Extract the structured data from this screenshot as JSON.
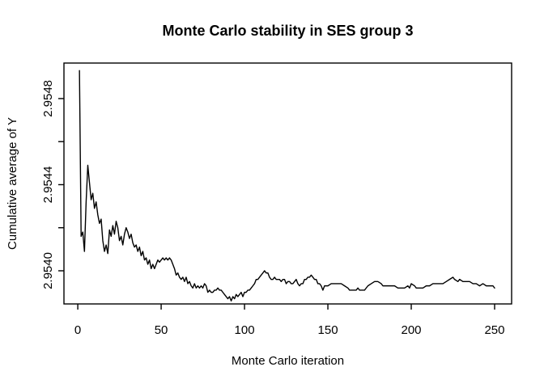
{
  "figure": {
    "background": "#ffffff",
    "foreground": "#000000"
  },
  "chart_data": {
    "type": "line",
    "title": "Monte Carlo stability in SES group 3",
    "xlabel": "Monte Carlo iteration",
    "ylabel": "Cumulative average of Y",
    "xlim": [
      -8.3,
      260.2
    ],
    "ylim": [
      2.953846,
      2.954965
    ],
    "grid": false,
    "legend": null,
    "x_ticks": {
      "values": [
        0,
        50,
        100,
        150,
        200,
        250
      ],
      "labels": [
        "0",
        "50",
        "100",
        "150",
        "200",
        "250"
      ]
    },
    "y_ticks": {
      "values": [
        2.954,
        2.9542,
        2.9544,
        2.9546,
        2.9548
      ],
      "labels": [
        "2.9540",
        "",
        "2.9544",
        "",
        "2.9548"
      ]
    },
    "series": [
      {
        "name": "cumulative_average_of_Y",
        "color": "#000000",
        "points": [
          [
            1,
            2.95493
          ],
          [
            2,
            2.95416
          ],
          [
            3,
            2.95418
          ],
          [
            4,
            2.95409
          ],
          [
            5,
            2.95432
          ],
          [
            6,
            2.95449
          ],
          [
            7,
            2.95441
          ],
          [
            8,
            2.95433
          ],
          [
            9,
            2.95436
          ],
          [
            10,
            2.95429
          ],
          [
            11,
            2.95432
          ],
          [
            12,
            2.95426
          ],
          [
            13,
            2.95422
          ],
          [
            14,
            2.95424
          ],
          [
            15,
            2.95414
          ],
          [
            16,
            2.95409
          ],
          [
            17,
            2.95412
          ],
          [
            18,
            2.95408
          ],
          [
            19,
            2.95419
          ],
          [
            20,
            2.95416
          ],
          [
            21,
            2.95421
          ],
          [
            22,
            2.95417
          ],
          [
            23,
            2.95423
          ],
          [
            24,
            2.9542
          ],
          [
            25,
            2.95414
          ],
          [
            26,
            2.95416
          ],
          [
            27,
            2.95412
          ],
          [
            28,
            2.95417
          ],
          [
            29,
            2.9542
          ],
          [
            30,
            2.95418
          ],
          [
            31,
            2.95415
          ],
          [
            32,
            2.95417
          ],
          [
            33,
            2.95413
          ],
          [
            34,
            2.95411
          ],
          [
            35,
            2.95412
          ],
          [
            36,
            2.95409
          ],
          [
            37,
            2.95411
          ],
          [
            38,
            2.95407
          ],
          [
            39,
            2.95409
          ],
          [
            40,
            2.95405
          ],
          [
            41,
            2.95406
          ],
          [
            42,
            2.95403
          ],
          [
            43,
            2.95405
          ],
          [
            44,
            2.95401
          ],
          [
            45,
            2.95403
          ],
          [
            46,
            2.95401
          ],
          [
            47,
            2.95403
          ],
          [
            48,
            2.95405
          ],
          [
            49,
            2.95404
          ],
          [
            50,
            2.95405
          ],
          [
            51,
            2.95406
          ],
          [
            52,
            2.95405
          ],
          [
            53,
            2.95406
          ],
          [
            54,
            2.95405
          ],
          [
            55,
            2.95406
          ],
          [
            56,
            2.95405
          ],
          [
            57,
            2.95403
          ],
          [
            58,
            2.95401
          ],
          [
            59,
            2.95398
          ],
          [
            60,
            2.95399
          ],
          [
            61,
            2.95397
          ],
          [
            62,
            2.95396
          ],
          [
            63,
            2.95397
          ],
          [
            64,
            2.95395
          ],
          [
            65,
            2.95397
          ],
          [
            66,
            2.95394
          ],
          [
            67,
            2.95395
          ],
          [
            68,
            2.95393
          ],
          [
            69,
            2.95392
          ],
          [
            70,
            2.95394
          ],
          [
            71,
            2.95392
          ],
          [
            72,
            2.95393
          ],
          [
            73,
            2.95392
          ],
          [
            74,
            2.95393
          ],
          [
            75,
            2.95392
          ],
          [
            76,
            2.95394
          ],
          [
            77,
            2.95393
          ],
          [
            78,
            2.9539
          ],
          [
            79,
            2.95391
          ],
          [
            80,
            2.9539
          ],
          [
            81,
            2.9539
          ],
          [
            82,
            2.95391
          ],
          [
            83,
            2.95391
          ],
          [
            84,
            2.95392
          ],
          [
            85,
            2.95391
          ],
          [
            86,
            2.95391
          ],
          [
            87,
            2.9539
          ],
          [
            88,
            2.95389
          ],
          [
            89,
            2.95388
          ],
          [
            90,
            2.95387
          ],
          [
            91,
            2.95388
          ],
          [
            92,
            2.95386
          ],
          [
            93,
            2.95388
          ],
          [
            94,
            2.95387
          ],
          [
            95,
            2.95389
          ],
          [
            96,
            2.95388
          ],
          [
            97,
            2.95389
          ],
          [
            98,
            2.9539
          ],
          [
            99,
            2.95388
          ],
          [
            100,
            2.9539
          ],
          [
            101,
            2.9539
          ],
          [
            102,
            2.95391
          ],
          [
            103,
            2.95391
          ],
          [
            104,
            2.95392
          ],
          [
            105,
            2.95393
          ],
          [
            106,
            2.95394
          ],
          [
            107,
            2.95396
          ],
          [
            108,
            2.95396
          ],
          [
            109,
            2.95397
          ],
          [
            110,
            2.95398
          ],
          [
            111,
            2.95399
          ],
          [
            112,
            2.954
          ],
          [
            113,
            2.95399
          ],
          [
            114,
            2.95399
          ],
          [
            115,
            2.95397
          ],
          [
            116,
            2.95396
          ],
          [
            117,
            2.95396
          ],
          [
            118,
            2.95397
          ],
          [
            119,
            2.95396
          ],
          [
            120,
            2.95396
          ],
          [
            121,
            2.95396
          ],
          [
            122,
            2.95395
          ],
          [
            123,
            2.95396
          ],
          [
            124,
            2.95396
          ],
          [
            125,
            2.95394
          ],
          [
            126,
            2.95395
          ],
          [
            127,
            2.95395
          ],
          [
            128,
            2.95394
          ],
          [
            129,
            2.95394
          ],
          [
            130,
            2.95395
          ],
          [
            131,
            2.95396
          ],
          [
            132,
            2.95394
          ],
          [
            133,
            2.95393
          ],
          [
            134,
            2.95394
          ],
          [
            135,
            2.95394
          ],
          [
            136,
            2.95396
          ],
          [
            137,
            2.95396
          ],
          [
            138,
            2.95397
          ],
          [
            139,
            2.95397
          ],
          [
            140,
            2.95398
          ],
          [
            141,
            2.95397
          ],
          [
            142,
            2.95396
          ],
          [
            143,
            2.95396
          ],
          [
            144,
            2.95394
          ],
          [
            145,
            2.95394
          ],
          [
            146,
            2.95393
          ],
          [
            147,
            2.95391
          ],
          [
            148,
            2.95393
          ],
          [
            149,
            2.95393
          ],
          [
            150,
            2.95393
          ],
          [
            152,
            2.95394
          ],
          [
            154,
            2.95394
          ],
          [
            156,
            2.95394
          ],
          [
            158,
            2.95394
          ],
          [
            160,
            2.95393
          ],
          [
            162,
            2.95392
          ],
          [
            163,
            2.95391
          ],
          [
            165,
            2.95391
          ],
          [
            167,
            2.95391
          ],
          [
            168,
            2.95392
          ],
          [
            169,
            2.95391
          ],
          [
            171,
            2.95391
          ],
          [
            172,
            2.95391
          ],
          [
            174,
            2.95393
          ],
          [
            176,
            2.95394
          ],
          [
            178,
            2.95395
          ],
          [
            180,
            2.95395
          ],
          [
            182,
            2.95394
          ],
          [
            183,
            2.95393
          ],
          [
            185,
            2.95393
          ],
          [
            187,
            2.95393
          ],
          [
            188,
            2.95393
          ],
          [
            190,
            2.95393
          ],
          [
            192,
            2.95392
          ],
          [
            194,
            2.95392
          ],
          [
            196,
            2.95392
          ],
          [
            198,
            2.95393
          ],
          [
            199,
            2.95392
          ],
          [
            200,
            2.95394
          ],
          [
            202,
            2.95393
          ],
          [
            203,
            2.95392
          ],
          [
            205,
            2.95392
          ],
          [
            207,
            2.95392
          ],
          [
            209,
            2.95393
          ],
          [
            211,
            2.95393
          ],
          [
            213,
            2.95394
          ],
          [
            215,
            2.95394
          ],
          [
            217,
            2.95394
          ],
          [
            219,
            2.95394
          ],
          [
            221,
            2.95395
          ],
          [
            223,
            2.95396
          ],
          [
            225,
            2.95397
          ],
          [
            226,
            2.95396
          ],
          [
            228,
            2.95395
          ],
          [
            229,
            2.95396
          ],
          [
            231,
            2.95395
          ],
          [
            233,
            2.95395
          ],
          [
            235,
            2.95395
          ],
          [
            237,
            2.95394
          ],
          [
            239,
            2.95394
          ],
          [
            241,
            2.95393
          ],
          [
            243,
            2.95394
          ],
          [
            245,
            2.95393
          ],
          [
            247,
            2.95393
          ],
          [
            249,
            2.95393
          ],
          [
            250,
            2.95392
          ]
        ]
      }
    ]
  }
}
